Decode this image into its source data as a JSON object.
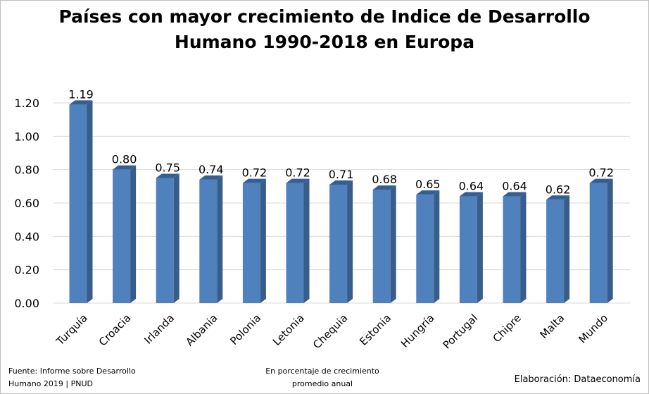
{
  "chart_data": {
    "type": "bar",
    "title_line1": "Países con mayor crecimiento de Indice de Desarrollo",
    "title_line2": "Humano 1990-2018 en Europa",
    "categories": [
      "Turquía",
      "Croacia",
      "Irlanda",
      "Albania",
      "Polonia",
      "Letonia",
      "Chequia",
      "Estonia",
      "Hungría",
      "Portugal",
      "Chipre",
      "Malta",
      "Mundo"
    ],
    "values": [
      1.19,
      0.8,
      0.75,
      0.74,
      0.72,
      0.72,
      0.71,
      0.68,
      0.65,
      0.64,
      0.64,
      0.62,
      0.72
    ],
    "value_labels": [
      "1.19",
      "0.80",
      "0.75",
      "0.74",
      "0.72",
      "0.72",
      "0.71",
      "0.68",
      "0.65",
      "0.64",
      "0.64",
      "0.62",
      "0.72"
    ],
    "ylim": [
      0,
      1.2
    ],
    "yticks": [
      "0.00",
      "0.20",
      "0.40",
      "0.60",
      "0.80",
      "1.00",
      "1.20"
    ],
    "grid": true,
    "bar_style": "3d",
    "colors": {
      "bar_front": "#4f81bd",
      "bar_side": "#385d8a",
      "bar_top": "#365f91",
      "grid": "#d9d9d9"
    }
  },
  "footer": {
    "source_line1": "Fuente: Informe sobre Desarrollo",
    "source_line2": "Humano 2019 | PNUD",
    "note_line1": "En porcentaje de crecimiento",
    "note_line2": "promedio anual",
    "credit": "Elaboración: Dataeconomía"
  }
}
